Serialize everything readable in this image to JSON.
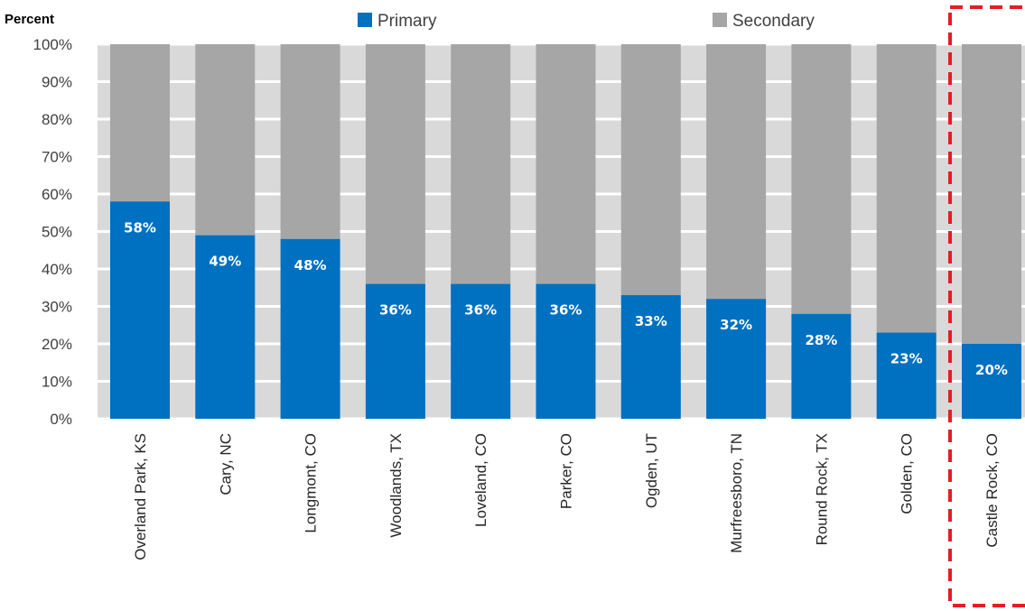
{
  "chart_data": {
    "type": "bar",
    "stacked": true,
    "ylabel": "Percent",
    "ylim": [
      0,
      100
    ],
    "yticks": [
      "0%",
      "10%",
      "20%",
      "30%",
      "40%",
      "50%",
      "60%",
      "70%",
      "80%",
      "90%",
      "100%"
    ],
    "categories": [
      "Overland Park, KS",
      "Cary, NC",
      "Longmont, CO",
      "Woodlands, TX",
      "Loveland, CO",
      "Parker, CO",
      "Ogden, UT",
      "Murfreesboro, TN",
      "Round Rock, TX",
      "Golden, CO",
      "Castle Rock, CO"
    ],
    "series": [
      {
        "name": "Primary",
        "color": "#0070c0",
        "values": [
          58,
          49,
          48,
          36,
          36,
          36,
          33,
          32,
          28,
          23,
          20
        ]
      },
      {
        "name": "Secondary",
        "color": "#a6a6a6",
        "values": [
          42,
          51,
          52,
          64,
          64,
          64,
          67,
          68,
          72,
          77,
          80
        ]
      }
    ],
    "data_labels": [
      "58%",
      "49%",
      "48%",
      "36%",
      "36%",
      "36%",
      "33%",
      "32%",
      "28%",
      "23%",
      "20%"
    ],
    "legend": "top",
    "highlight": {
      "category": "Castle Rock, CO",
      "style": "red-dashed-box",
      "color": "#e31e24"
    },
    "grid": true
  }
}
